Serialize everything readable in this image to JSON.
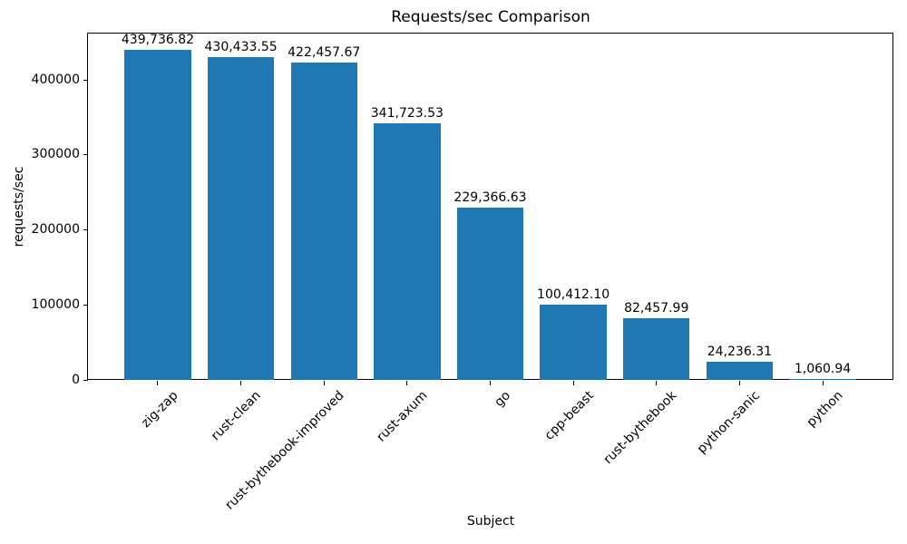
{
  "chart_data": {
    "type": "bar",
    "title": "Requests/sec Comparison",
    "xlabel": "Subject",
    "ylabel": "requests/sec",
    "categories": [
      "zig-zap",
      "rust-clean",
      "rust-bythebook-improved",
      "rust-axum",
      "go",
      "cpp-beast",
      "rust-bythebook",
      "python-sanic",
      "python"
    ],
    "values": [
      439736.82,
      430433.55,
      422457.67,
      341723.53,
      229366.63,
      100412.1,
      82457.99,
      24236.31,
      1060.94
    ],
    "value_labels": [
      "439,736.82",
      "430,433.55",
      "422,457.67",
      "341,723.53",
      "229,366.63",
      "100,412.10",
      "82,457.99",
      "24,236.31",
      "1,060.94"
    ],
    "yticks": [
      0,
      100000,
      200000,
      300000,
      400000
    ],
    "ytick_labels": [
      "0",
      "100000",
      "200000",
      "300000",
      "400000"
    ],
    "ylim": [
      0,
      461723.66
    ],
    "bar_color": "#1f77b4",
    "axis_color": "#000000",
    "grid": false,
    "legend": false
  }
}
